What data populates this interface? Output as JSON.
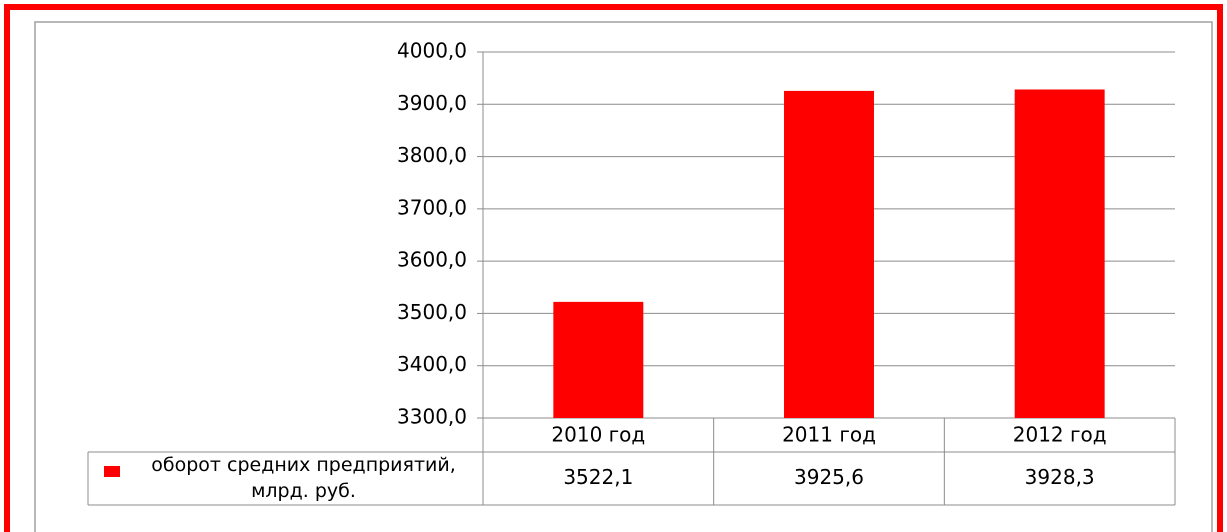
{
  "chart_data": {
    "type": "bar",
    "categories": [
      "2010 год",
      "2011 год",
      "2012 год"
    ],
    "series": [
      {
        "name": "оборот средних предприятий, млрд. руб.",
        "color": "#ff0000",
        "values": [
          3522.1,
          3925.6,
          3928.3
        ],
        "value_labels": [
          "3522,1",
          "3925,6",
          "3928,3"
        ]
      }
    ],
    "ylim": [
      3300,
      4000
    ],
    "yticks": [
      {
        "value": 3300,
        "label": "3300,0"
      },
      {
        "value": 3400,
        "label": "3400,0"
      },
      {
        "value": 3500,
        "label": "3500,0"
      },
      {
        "value": 3600,
        "label": "3600,0"
      },
      {
        "value": 3700,
        "label": "3700,0"
      },
      {
        "value": 3800,
        "label": "3800,0"
      },
      {
        "value": 3900,
        "label": "3900,0"
      },
      {
        "value": 4000,
        "label": "4000,0"
      }
    ],
    "grid": true
  }
}
